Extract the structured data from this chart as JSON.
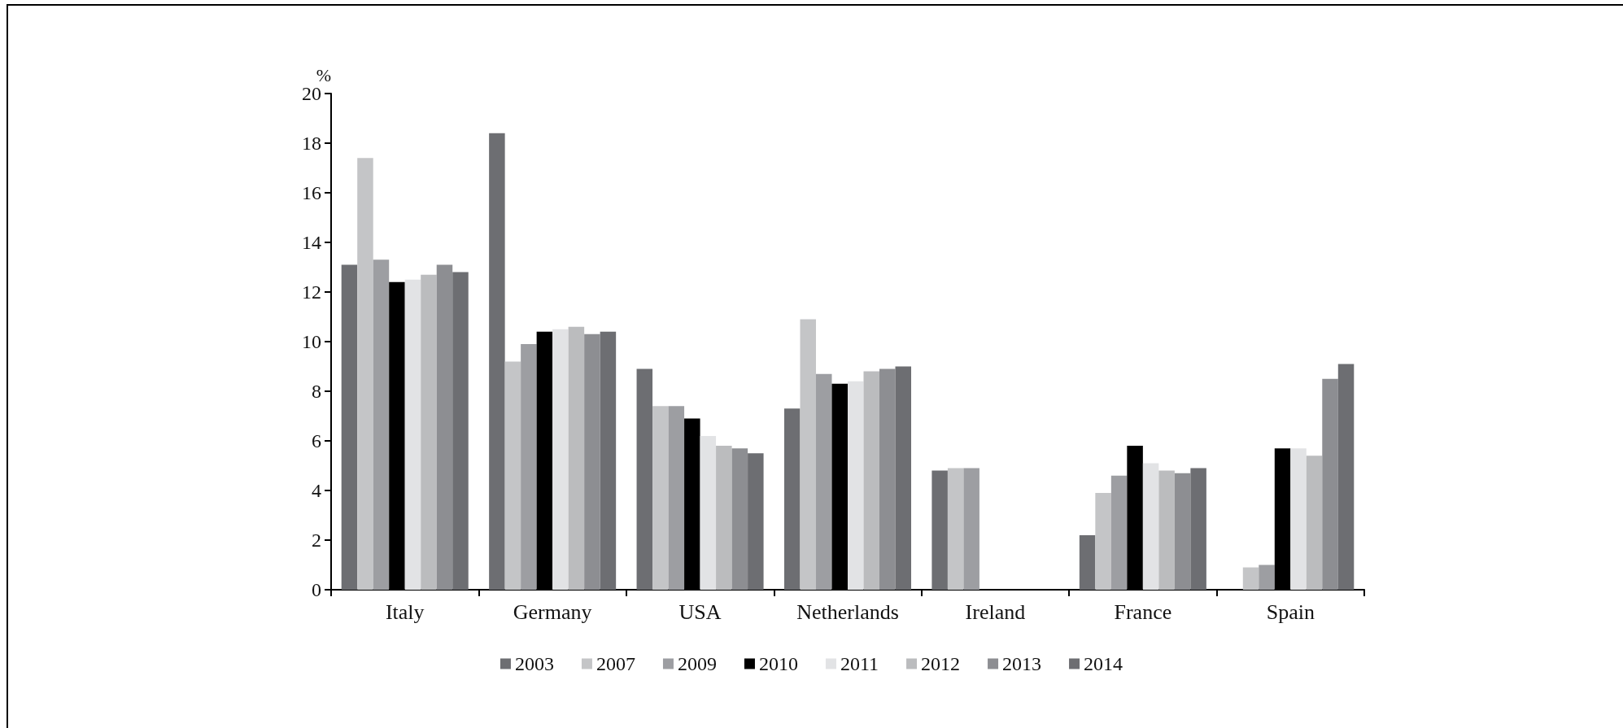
{
  "chart_data": {
    "type": "bar",
    "ylabel": "%",
    "categories": [
      "Italy",
      "Germany",
      "USA",
      "Netherlands",
      "Ireland",
      "France",
      "Spain"
    ],
    "series": [
      {
        "name": "2003",
        "color": "#6d6e72",
        "values": [
          13.1,
          18.4,
          8.9,
          7.3,
          4.8,
          2.2,
          null
        ]
      },
      {
        "name": "2007",
        "color": "#c4c5c7",
        "values": [
          17.4,
          9.2,
          7.4,
          10.9,
          4.9,
          3.9,
          0.9
        ]
      },
      {
        "name": "2009",
        "color": "#9d9ea2",
        "values": [
          13.3,
          9.9,
          7.4,
          8.7,
          4.9,
          4.6,
          1.0
        ]
      },
      {
        "name": "2010",
        "color": "#000000",
        "values": [
          12.4,
          10.4,
          6.9,
          8.3,
          null,
          5.8,
          5.7
        ]
      },
      {
        "name": "2011",
        "color": "#e2e3e5",
        "values": [
          12.5,
          10.5,
          6.2,
          8.4,
          null,
          5.1,
          5.7
        ]
      },
      {
        "name": "2012",
        "color": "#bbbcbe",
        "values": [
          12.7,
          10.6,
          5.8,
          8.8,
          null,
          4.8,
          5.4
        ]
      },
      {
        "name": "2013",
        "color": "#8d8e92",
        "values": [
          13.1,
          10.3,
          5.7,
          8.9,
          null,
          4.7,
          8.5
        ]
      },
      {
        "name": "2014",
        "color": "#6d6e72",
        "values": [
          12.8,
          10.4,
          5.5,
          9.0,
          null,
          4.9,
          9.1
        ]
      }
    ],
    "ylim": [
      0,
      20
    ],
    "yticks": [
      0,
      2,
      4,
      6,
      8,
      10,
      12,
      14,
      16,
      18,
      20
    ],
    "grid": false,
    "legend": "bottom"
  }
}
